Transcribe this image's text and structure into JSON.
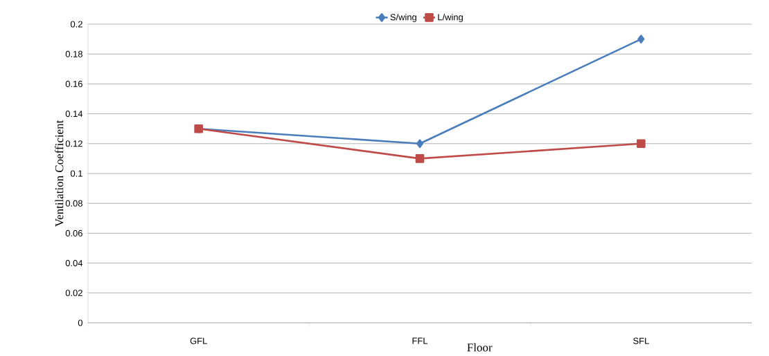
{
  "chart_data": {
    "type": "line",
    "xlabel": "Floor",
    "ylabel": "Ventilation Coefficient",
    "categories": [
      "GFL",
      "FFL",
      "SFL"
    ],
    "series": [
      {
        "name": "S/wing",
        "color": "#4a7ebb",
        "marker": "diamond",
        "values": [
          0.13,
          0.12,
          0.19
        ]
      },
      {
        "name": "L/wing",
        "color": "#be4b48",
        "marker": "square",
        "values": [
          0.13,
          0.11,
          0.12
        ]
      }
    ],
    "ylim": [
      0,
      0.2
    ],
    "yticks": [
      0,
      0.02,
      0.04,
      0.06,
      0.08,
      0.1,
      0.12,
      0.14,
      0.16,
      0.18,
      0.2
    ],
    "grid": "y",
    "legend": "top",
    "line_style": "solid"
  }
}
